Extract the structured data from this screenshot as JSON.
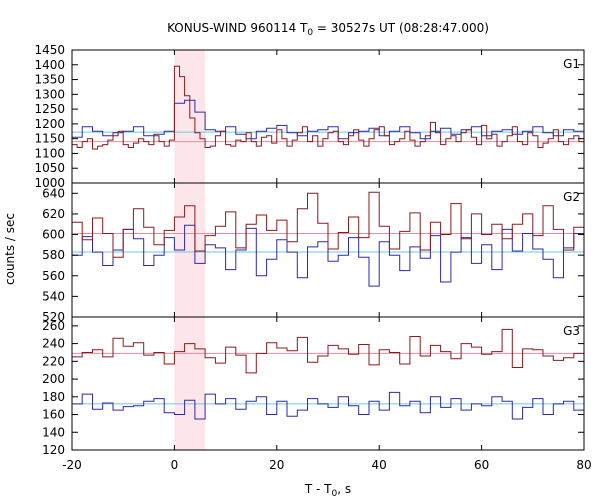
{
  "chart_data": {
    "type": "line",
    "title_main": "KONUS-WIND 960114 T",
    "title_sub": "0",
    "title_rest": " = 30527s UT (08:28:47.000)",
    "xlabel_main": "T - T",
    "xlabel_sub": "0",
    "xlabel_rest": ", s",
    "ylabel": "counts / sec",
    "xlim": [
      -20,
      80
    ],
    "xticks": [
      -20,
      0,
      20,
      40,
      60,
      80
    ],
    "shaded_interval": [
      0,
      6
    ],
    "colors": {
      "red_series": "#8b1a1a",
      "blue_series": "#2a2aa8",
      "bg_level_blue": "#6ec6e6",
      "bg_level_red": "#e88aa0",
      "shade": "#fde6ea"
    },
    "panels": [
      {
        "label": "G1",
        "ylim": [
          1000,
          1450
        ],
        "yticks": [
          1000,
          1050,
          1100,
          1150,
          1200,
          1250,
          1300,
          1350,
          1400,
          1450
        ],
        "bg_blue": 1172,
        "bg_red": 1140,
        "red_x0": -20,
        "red_dt": 1,
        "red": [
          1130,
          1120,
          1140,
          1150,
          1115,
          1125,
          1130,
          1145,
          1160,
          1175,
          1130,
          1120,
          1135,
          1150,
          1140,
          1130,
          1160,
          1140,
          1125,
          1145,
          1395,
          1360,
          1295,
          1220,
          1170,
          1150,
          1120,
          1125,
          1160,
          1175,
          1130,
          1125,
          1145,
          1140,
          1170,
          1140,
          1125,
          1155,
          1160,
          1135,
          1180,
          1150,
          1125,
          1145,
          1170,
          1190,
          1140,
          1160,
          1125,
          1150,
          1170,
          1175,
          1140,
          1130,
          1160,
          1180,
          1145,
          1125,
          1150,
          1180,
          1190,
          1160,
          1130,
          1140,
          1150,
          1175,
          1145,
          1125,
          1140,
          1160,
          1205,
          1170,
          1130,
          1150,
          1160,
          1140,
          1170,
          1180,
          1155,
          1130,
          1195,
          1150,
          1165,
          1125,
          1140,
          1160,
          1190,
          1140,
          1130,
          1170,
          1160,
          1120,
          1135,
          1150,
          1180,
          1140,
          1130,
          1150,
          1160,
          1140
        ],
        "blue_x0": -20,
        "blue_dt": 2,
        "blue": [
          1155,
          1190,
          1175,
          1160,
          1170,
          1175,
          1190,
          1160,
          1165,
          1175,
          1270,
          1280,
          1240,
          1180,
          1175,
          1190,
          1165,
          1150,
          1175,
          1185,
          1195,
          1170,
          1160,
          1175,
          1180,
          1190,
          1150,
          1170,
          1175,
          1185,
          1160,
          1175,
          1190,
          1170,
          1150,
          1175,
          1185,
          1165,
          1180,
          1190,
          1160,
          1175,
          1180,
          1165,
          1175,
          1190,
          1170,
          1160,
          1180,
          1175
        ]
      },
      {
        "label": "G2",
        "ylim": [
          520,
          650
        ],
        "yticks": [
          520,
          540,
          560,
          580,
          600,
          620,
          640
        ],
        "bg_blue": 583,
        "bg_red": 601,
        "red_x0": -20,
        "red_dt": 2,
        "red": [
          612,
          595,
          616,
          601,
          578,
          605,
          625,
          607,
          590,
          604,
          617,
          628,
          584,
          599,
          608,
          622,
          587,
          610,
          619,
          604,
          614,
          593,
          625,
          640,
          611,
          586,
          602,
          617,
          597,
          641,
          608,
          586,
          603,
          621,
          585,
          612,
          600,
          630,
          596,
          620,
          600,
          610,
          596,
          610,
          620,
          599,
          628,
          605,
          585,
          607
        ],
        "blue_x0": -20,
        "blue_dt": 2,
        "blue": [
          580,
          598,
          583,
          570,
          585,
          605,
          596,
          570,
          580,
          597,
          585,
          609,
          572,
          590,
          587,
          566,
          585,
          606,
          560,
          576,
          595,
          583,
          558,
          588,
          593,
          574,
          580,
          597,
          578,
          550,
          593,
          580,
          565,
          588,
          577,
          599,
          554,
          583,
          597,
          572,
          590,
          566,
          605,
          584,
          601,
          586,
          576,
          558,
          587,
          601
        ]
      },
      {
        "label": "G3",
        "ylim": [
          120,
          270
        ],
        "yticks": [
          120,
          140,
          160,
          180,
          200,
          220,
          240,
          260
        ],
        "bg_blue": 172,
        "bg_red": 229,
        "red_x0": -20,
        "red_dt": 2,
        "red": [
          225,
          230,
          233,
          225,
          246,
          237,
          241,
          227,
          230,
          217,
          231,
          240,
          234,
          224,
          218,
          236,
          227,
          207,
          229,
          241,
          235,
          232,
          247,
          219,
          226,
          238,
          234,
          228,
          239,
          216,
          233,
          230,
          217,
          248,
          226,
          238,
          231,
          223,
          240,
          236,
          228,
          231,
          256,
          213,
          234,
          233,
          226,
          221,
          224,
          229
        ],
        "blue_x0": -20,
        "blue_dt": 2,
        "blue": [
          172,
          183,
          166,
          173,
          165,
          169,
          170,
          175,
          178,
          162,
          160,
          176,
          155,
          183,
          172,
          178,
          166,
          175,
          180,
          160,
          175,
          158,
          165,
          178,
          172,
          168,
          180,
          170,
          160,
          175,
          165,
          185,
          170,
          175,
          162,
          180,
          168,
          178,
          165,
          172,
          170,
          180,
          175,
          155,
          168,
          178,
          160,
          172,
          175,
          165
        ]
      }
    ]
  }
}
